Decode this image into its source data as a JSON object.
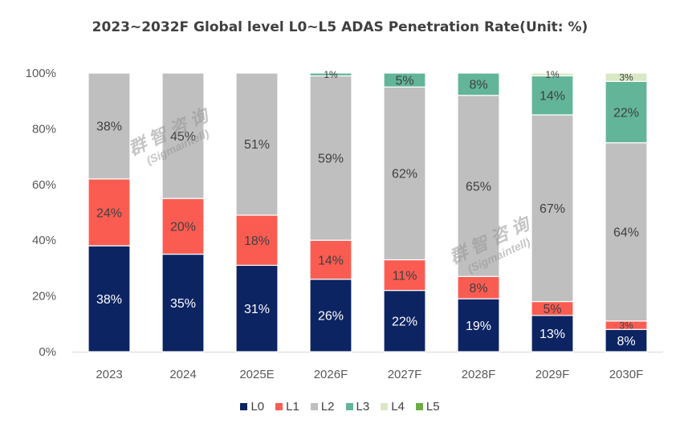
{
  "title": "2023~2032F Global level L0~L5 ADAS Penetration Rate(Unit: %)",
  "colors": {
    "L0": "#0d2463",
    "L1": "#fb5c52",
    "L2": "#bfbfbf",
    "L3": "#62b598",
    "L4": "#d9e8c5",
    "L5": "#6cae46"
  },
  "watermark": {
    "text_cn": "群智咨询",
    "text_en": "(Sigmaintell)"
  },
  "chart_data": {
    "type": "bar",
    "stacked": true,
    "title": "2023~2032F Global level L0~L5 ADAS Penetration Rate(Unit: %)",
    "categories": [
      "2023",
      "2024",
      "2025E",
      "2026F",
      "2027F",
      "2028F",
      "2029F",
      "2030F"
    ],
    "series": [
      {
        "name": "L0",
        "values": [
          38,
          35,
          31,
          26,
          22,
          19,
          13,
          8
        ],
        "labels": [
          "38%",
          "35%",
          "31%",
          "26%",
          "22%",
          "19%",
          "13%",
          "8%"
        ]
      },
      {
        "name": "L1",
        "values": [
          24,
          20,
          18,
          14,
          11,
          8,
          5,
          3
        ],
        "labels": [
          "24%",
          "20%",
          "18%",
          "14%",
          "11%",
          "8%",
          "5%",
          "3%"
        ]
      },
      {
        "name": "L2",
        "values": [
          38,
          45,
          51,
          59,
          62,
          65,
          67,
          64
        ],
        "labels": [
          "38%",
          "45%",
          "51%",
          "59%",
          "62%",
          "65%",
          "67%",
          "64%"
        ]
      },
      {
        "name": "L3",
        "values": [
          0,
          0,
          0,
          1,
          5,
          8,
          14,
          22
        ],
        "labels": [
          "",
          "",
          "",
          "1%",
          "5%",
          "8%",
          "14%",
          "22%"
        ]
      },
      {
        "name": "L4",
        "values": [
          0,
          0,
          0,
          0,
          0,
          0,
          1,
          3
        ],
        "labels": [
          "",
          "",
          "",
          "",
          "",
          "",
          "1%",
          "3%"
        ]
      },
      {
        "name": "L5",
        "values": [
          0,
          0,
          0,
          0,
          0,
          0,
          0,
          0
        ],
        "labels": [
          "",
          "",
          "",
          "",
          "",
          "",
          "",
          ""
        ]
      }
    ],
    "yticks": [
      "0%",
      "20%",
      "40%",
      "60%",
      "80%",
      "100%"
    ],
    "ylim": [
      0,
      100
    ],
    "legend_position": "bottom",
    "grid": false
  }
}
